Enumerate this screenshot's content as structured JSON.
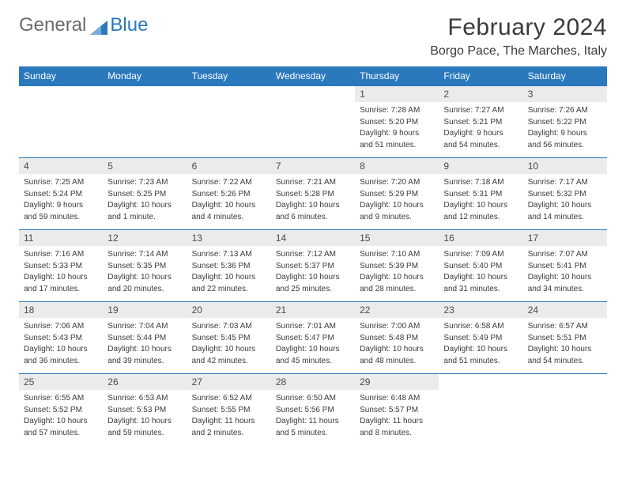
{
  "brand": {
    "part1": "General",
    "part2": "Blue"
  },
  "title": "February 2024",
  "location": "Borgo Pace, The Marches, Italy",
  "colors": {
    "header_bg": "#2a79bd",
    "header_text": "#ffffff",
    "daynum_bg": "#ebebeb",
    "border": "#2a79bd",
    "text": "#3a3a3a"
  },
  "daysOfWeek": [
    "Sunday",
    "Monday",
    "Tuesday",
    "Wednesday",
    "Thursday",
    "Friday",
    "Saturday"
  ],
  "weeks": [
    [
      {
        "blank": true
      },
      {
        "blank": true
      },
      {
        "blank": true
      },
      {
        "blank": true
      },
      {
        "n": "1",
        "sr": "Sunrise: 7:28 AM",
        "ss": "Sunset: 5:20 PM",
        "d1": "Daylight: 9 hours",
        "d2": "and 51 minutes."
      },
      {
        "n": "2",
        "sr": "Sunrise: 7:27 AM",
        "ss": "Sunset: 5:21 PM",
        "d1": "Daylight: 9 hours",
        "d2": "and 54 minutes."
      },
      {
        "n": "3",
        "sr": "Sunrise: 7:26 AM",
        "ss": "Sunset: 5:22 PM",
        "d1": "Daylight: 9 hours",
        "d2": "and 56 minutes."
      }
    ],
    [
      {
        "n": "4",
        "sr": "Sunrise: 7:25 AM",
        "ss": "Sunset: 5:24 PM",
        "d1": "Daylight: 9 hours",
        "d2": "and 59 minutes."
      },
      {
        "n": "5",
        "sr": "Sunrise: 7:23 AM",
        "ss": "Sunset: 5:25 PM",
        "d1": "Daylight: 10 hours",
        "d2": "and 1 minute."
      },
      {
        "n": "6",
        "sr": "Sunrise: 7:22 AM",
        "ss": "Sunset: 5:26 PM",
        "d1": "Daylight: 10 hours",
        "d2": "and 4 minutes."
      },
      {
        "n": "7",
        "sr": "Sunrise: 7:21 AM",
        "ss": "Sunset: 5:28 PM",
        "d1": "Daylight: 10 hours",
        "d2": "and 6 minutes."
      },
      {
        "n": "8",
        "sr": "Sunrise: 7:20 AM",
        "ss": "Sunset: 5:29 PM",
        "d1": "Daylight: 10 hours",
        "d2": "and 9 minutes."
      },
      {
        "n": "9",
        "sr": "Sunrise: 7:18 AM",
        "ss": "Sunset: 5:31 PM",
        "d1": "Daylight: 10 hours",
        "d2": "and 12 minutes."
      },
      {
        "n": "10",
        "sr": "Sunrise: 7:17 AM",
        "ss": "Sunset: 5:32 PM",
        "d1": "Daylight: 10 hours",
        "d2": "and 14 minutes."
      }
    ],
    [
      {
        "n": "11",
        "sr": "Sunrise: 7:16 AM",
        "ss": "Sunset: 5:33 PM",
        "d1": "Daylight: 10 hours",
        "d2": "and 17 minutes."
      },
      {
        "n": "12",
        "sr": "Sunrise: 7:14 AM",
        "ss": "Sunset: 5:35 PM",
        "d1": "Daylight: 10 hours",
        "d2": "and 20 minutes."
      },
      {
        "n": "13",
        "sr": "Sunrise: 7:13 AM",
        "ss": "Sunset: 5:36 PM",
        "d1": "Daylight: 10 hours",
        "d2": "and 22 minutes."
      },
      {
        "n": "14",
        "sr": "Sunrise: 7:12 AM",
        "ss": "Sunset: 5:37 PM",
        "d1": "Daylight: 10 hours",
        "d2": "and 25 minutes."
      },
      {
        "n": "15",
        "sr": "Sunrise: 7:10 AM",
        "ss": "Sunset: 5:39 PM",
        "d1": "Daylight: 10 hours",
        "d2": "and 28 minutes."
      },
      {
        "n": "16",
        "sr": "Sunrise: 7:09 AM",
        "ss": "Sunset: 5:40 PM",
        "d1": "Daylight: 10 hours",
        "d2": "and 31 minutes."
      },
      {
        "n": "17",
        "sr": "Sunrise: 7:07 AM",
        "ss": "Sunset: 5:41 PM",
        "d1": "Daylight: 10 hours",
        "d2": "and 34 minutes."
      }
    ],
    [
      {
        "n": "18",
        "sr": "Sunrise: 7:06 AM",
        "ss": "Sunset: 5:43 PM",
        "d1": "Daylight: 10 hours",
        "d2": "and 36 minutes."
      },
      {
        "n": "19",
        "sr": "Sunrise: 7:04 AM",
        "ss": "Sunset: 5:44 PM",
        "d1": "Daylight: 10 hours",
        "d2": "and 39 minutes."
      },
      {
        "n": "20",
        "sr": "Sunrise: 7:03 AM",
        "ss": "Sunset: 5:45 PM",
        "d1": "Daylight: 10 hours",
        "d2": "and 42 minutes."
      },
      {
        "n": "21",
        "sr": "Sunrise: 7:01 AM",
        "ss": "Sunset: 5:47 PM",
        "d1": "Daylight: 10 hours",
        "d2": "and 45 minutes."
      },
      {
        "n": "22",
        "sr": "Sunrise: 7:00 AM",
        "ss": "Sunset: 5:48 PM",
        "d1": "Daylight: 10 hours",
        "d2": "and 48 minutes."
      },
      {
        "n": "23",
        "sr": "Sunrise: 6:58 AM",
        "ss": "Sunset: 5:49 PM",
        "d1": "Daylight: 10 hours",
        "d2": "and 51 minutes."
      },
      {
        "n": "24",
        "sr": "Sunrise: 6:57 AM",
        "ss": "Sunset: 5:51 PM",
        "d1": "Daylight: 10 hours",
        "d2": "and 54 minutes."
      }
    ],
    [
      {
        "n": "25",
        "sr": "Sunrise: 6:55 AM",
        "ss": "Sunset: 5:52 PM",
        "d1": "Daylight: 10 hours",
        "d2": "and 57 minutes."
      },
      {
        "n": "26",
        "sr": "Sunrise: 6:53 AM",
        "ss": "Sunset: 5:53 PM",
        "d1": "Daylight: 10 hours",
        "d2": "and 59 minutes."
      },
      {
        "n": "27",
        "sr": "Sunrise: 6:52 AM",
        "ss": "Sunset: 5:55 PM",
        "d1": "Daylight: 11 hours",
        "d2": "and 2 minutes."
      },
      {
        "n": "28",
        "sr": "Sunrise: 6:50 AM",
        "ss": "Sunset: 5:56 PM",
        "d1": "Daylight: 11 hours",
        "d2": "and 5 minutes."
      },
      {
        "n": "29",
        "sr": "Sunrise: 6:48 AM",
        "ss": "Sunset: 5:57 PM",
        "d1": "Daylight: 11 hours",
        "d2": "and 8 minutes."
      },
      {
        "blank": true
      },
      {
        "blank": true
      }
    ]
  ]
}
